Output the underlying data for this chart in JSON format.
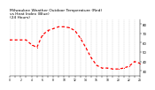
{
  "title": "Milwaukee Weather Outdoor Temperature (Red)\nvs Heat Index (Blue)\n(24 Hours)",
  "title_fontsize": 3.2,
  "line_color_temp": "#ff0000",
  "background_color": "#ffffff",
  "ylim": [
    25,
    85
  ],
  "xlim": [
    0,
    24
  ],
  "ytick_vals": [
    30,
    40,
    50,
    60,
    70,
    80
  ],
  "ytick_labels": [
    "30",
    "40",
    "50",
    "60",
    "70",
    "80"
  ],
  "temp_x": [
    0,
    1,
    2,
    3,
    4,
    5,
    6,
    7,
    8,
    9,
    10,
    11,
    12,
    13,
    14,
    15,
    16,
    17,
    18,
    19,
    20,
    21,
    22,
    23,
    24
  ],
  "temp_y": [
    63,
    63,
    63,
    63,
    58,
    55,
    68,
    73,
    75,
    77,
    77,
    76,
    73,
    65,
    55,
    44,
    36,
    33,
    33,
    32,
    32,
    33,
    35,
    40,
    38
  ],
  "grid_color": "#aaaaaa",
  "grid_xticks": [
    0,
    1,
    2,
    3,
    4,
    5,
    6,
    7,
    8,
    9,
    10,
    11,
    12,
    13,
    14,
    15,
    16,
    17,
    18,
    19,
    20,
    21,
    22,
    23,
    24
  ]
}
